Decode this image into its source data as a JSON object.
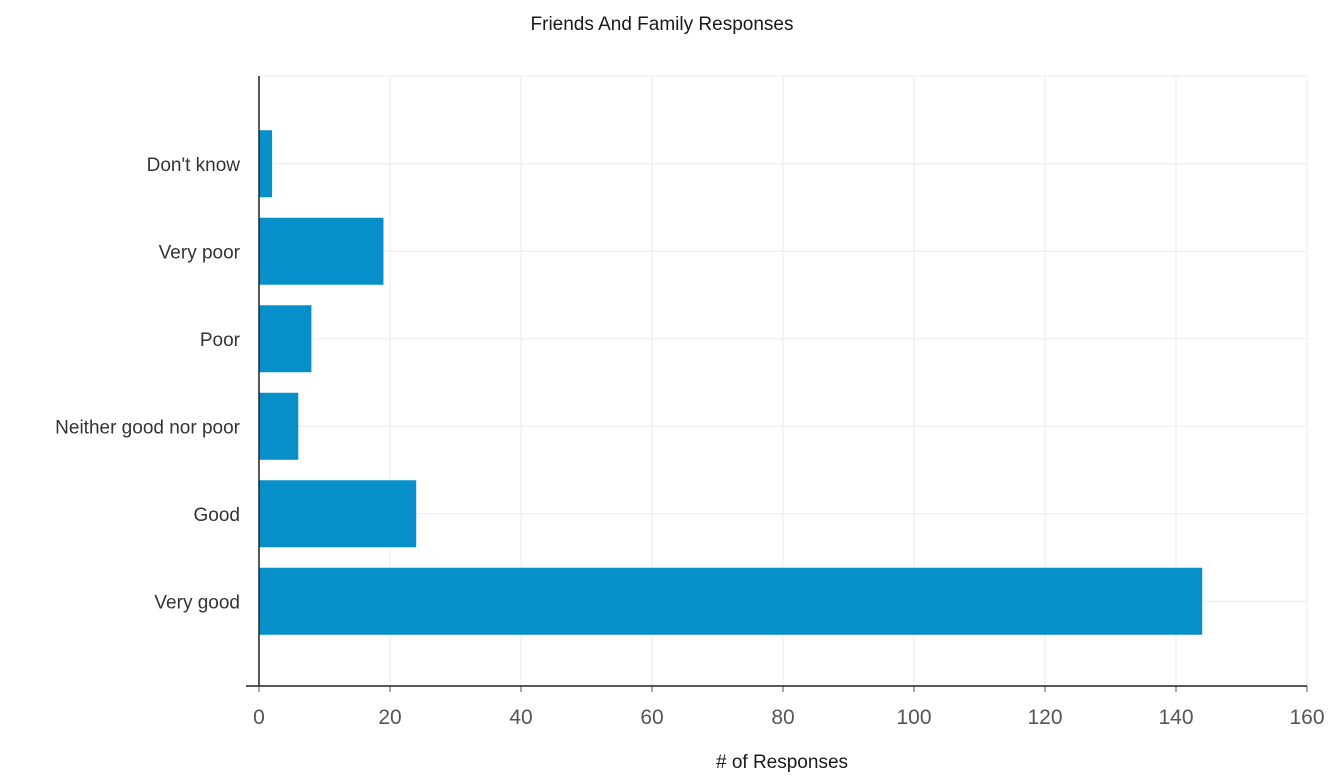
{
  "chart_data": {
    "type": "bar",
    "orientation": "horizontal",
    "title": "Friends And Family Responses",
    "xlabel": "# of Responses",
    "ylabel": "",
    "categories": [
      "Don't know",
      "Very poor",
      "Poor",
      "Neither good nor poor",
      "Good",
      "Very good"
    ],
    "values": [
      2,
      19,
      8,
      6,
      24,
      144
    ],
    "xlim": [
      0,
      160
    ],
    "xticks": [
      "0",
      "20",
      "40",
      "60",
      "80",
      "100",
      "120",
      "140",
      "160"
    ],
    "grid": true,
    "legend": "none",
    "bar_color": "#068fc9"
  }
}
